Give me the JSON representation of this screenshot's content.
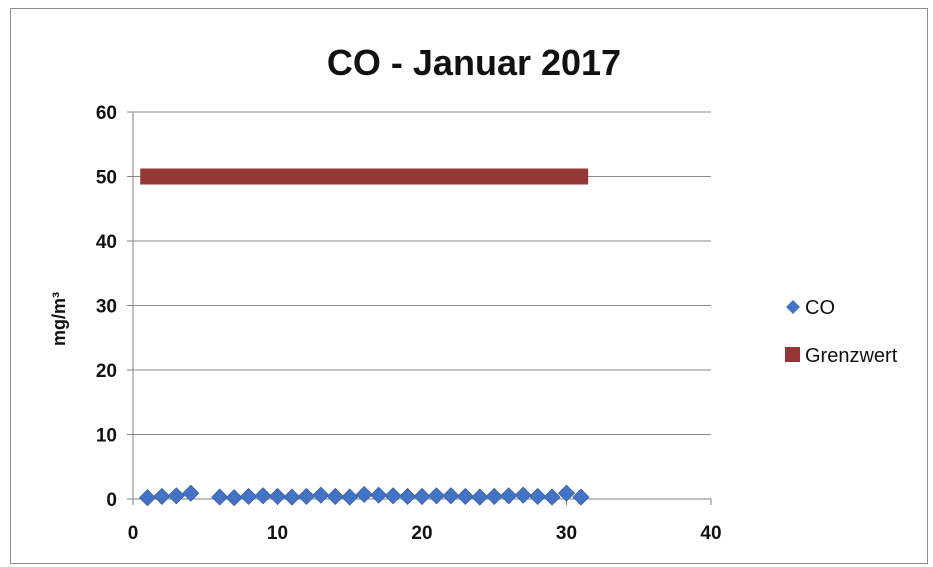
{
  "chart_data": {
    "type": "scatter",
    "title": "CO -  Januar 2017",
    "xlabel": "",
    "ylabel": "mg/m³",
    "xlim": [
      0,
      40
    ],
    "ylim": [
      0,
      60
    ],
    "x_ticks": [
      0,
      10,
      20,
      30,
      40
    ],
    "y_ticks": [
      0,
      10,
      20,
      30,
      40,
      50,
      60
    ],
    "grid": "horizontal",
    "legend_position": "right",
    "series": [
      {
        "name": "CO",
        "marker": "diamond",
        "color": "#4472C4",
        "x": [
          1,
          2,
          3,
          4,
          6,
          7,
          8,
          9,
          10,
          11,
          12,
          13,
          14,
          15,
          16,
          17,
          18,
          19,
          20,
          21,
          22,
          23,
          24,
          25,
          26,
          27,
          28,
          29,
          30,
          31
        ],
        "y": [
          0.2,
          0.4,
          0.5,
          0.9,
          0.3,
          0.2,
          0.4,
          0.5,
          0.4,
          0.3,
          0.4,
          0.6,
          0.4,
          0.3,
          0.7,
          0.6,
          0.5,
          0.4,
          0.4,
          0.5,
          0.5,
          0.4,
          0.3,
          0.4,
          0.5,
          0.6,
          0.4,
          0.3,
          0.9,
          0.3
        ]
      },
      {
        "name": "Grenzwert",
        "marker": "square",
        "color": "#953735",
        "x": [
          0.5,
          31.5
        ],
        "y": [
          50,
          50
        ]
      }
    ]
  }
}
